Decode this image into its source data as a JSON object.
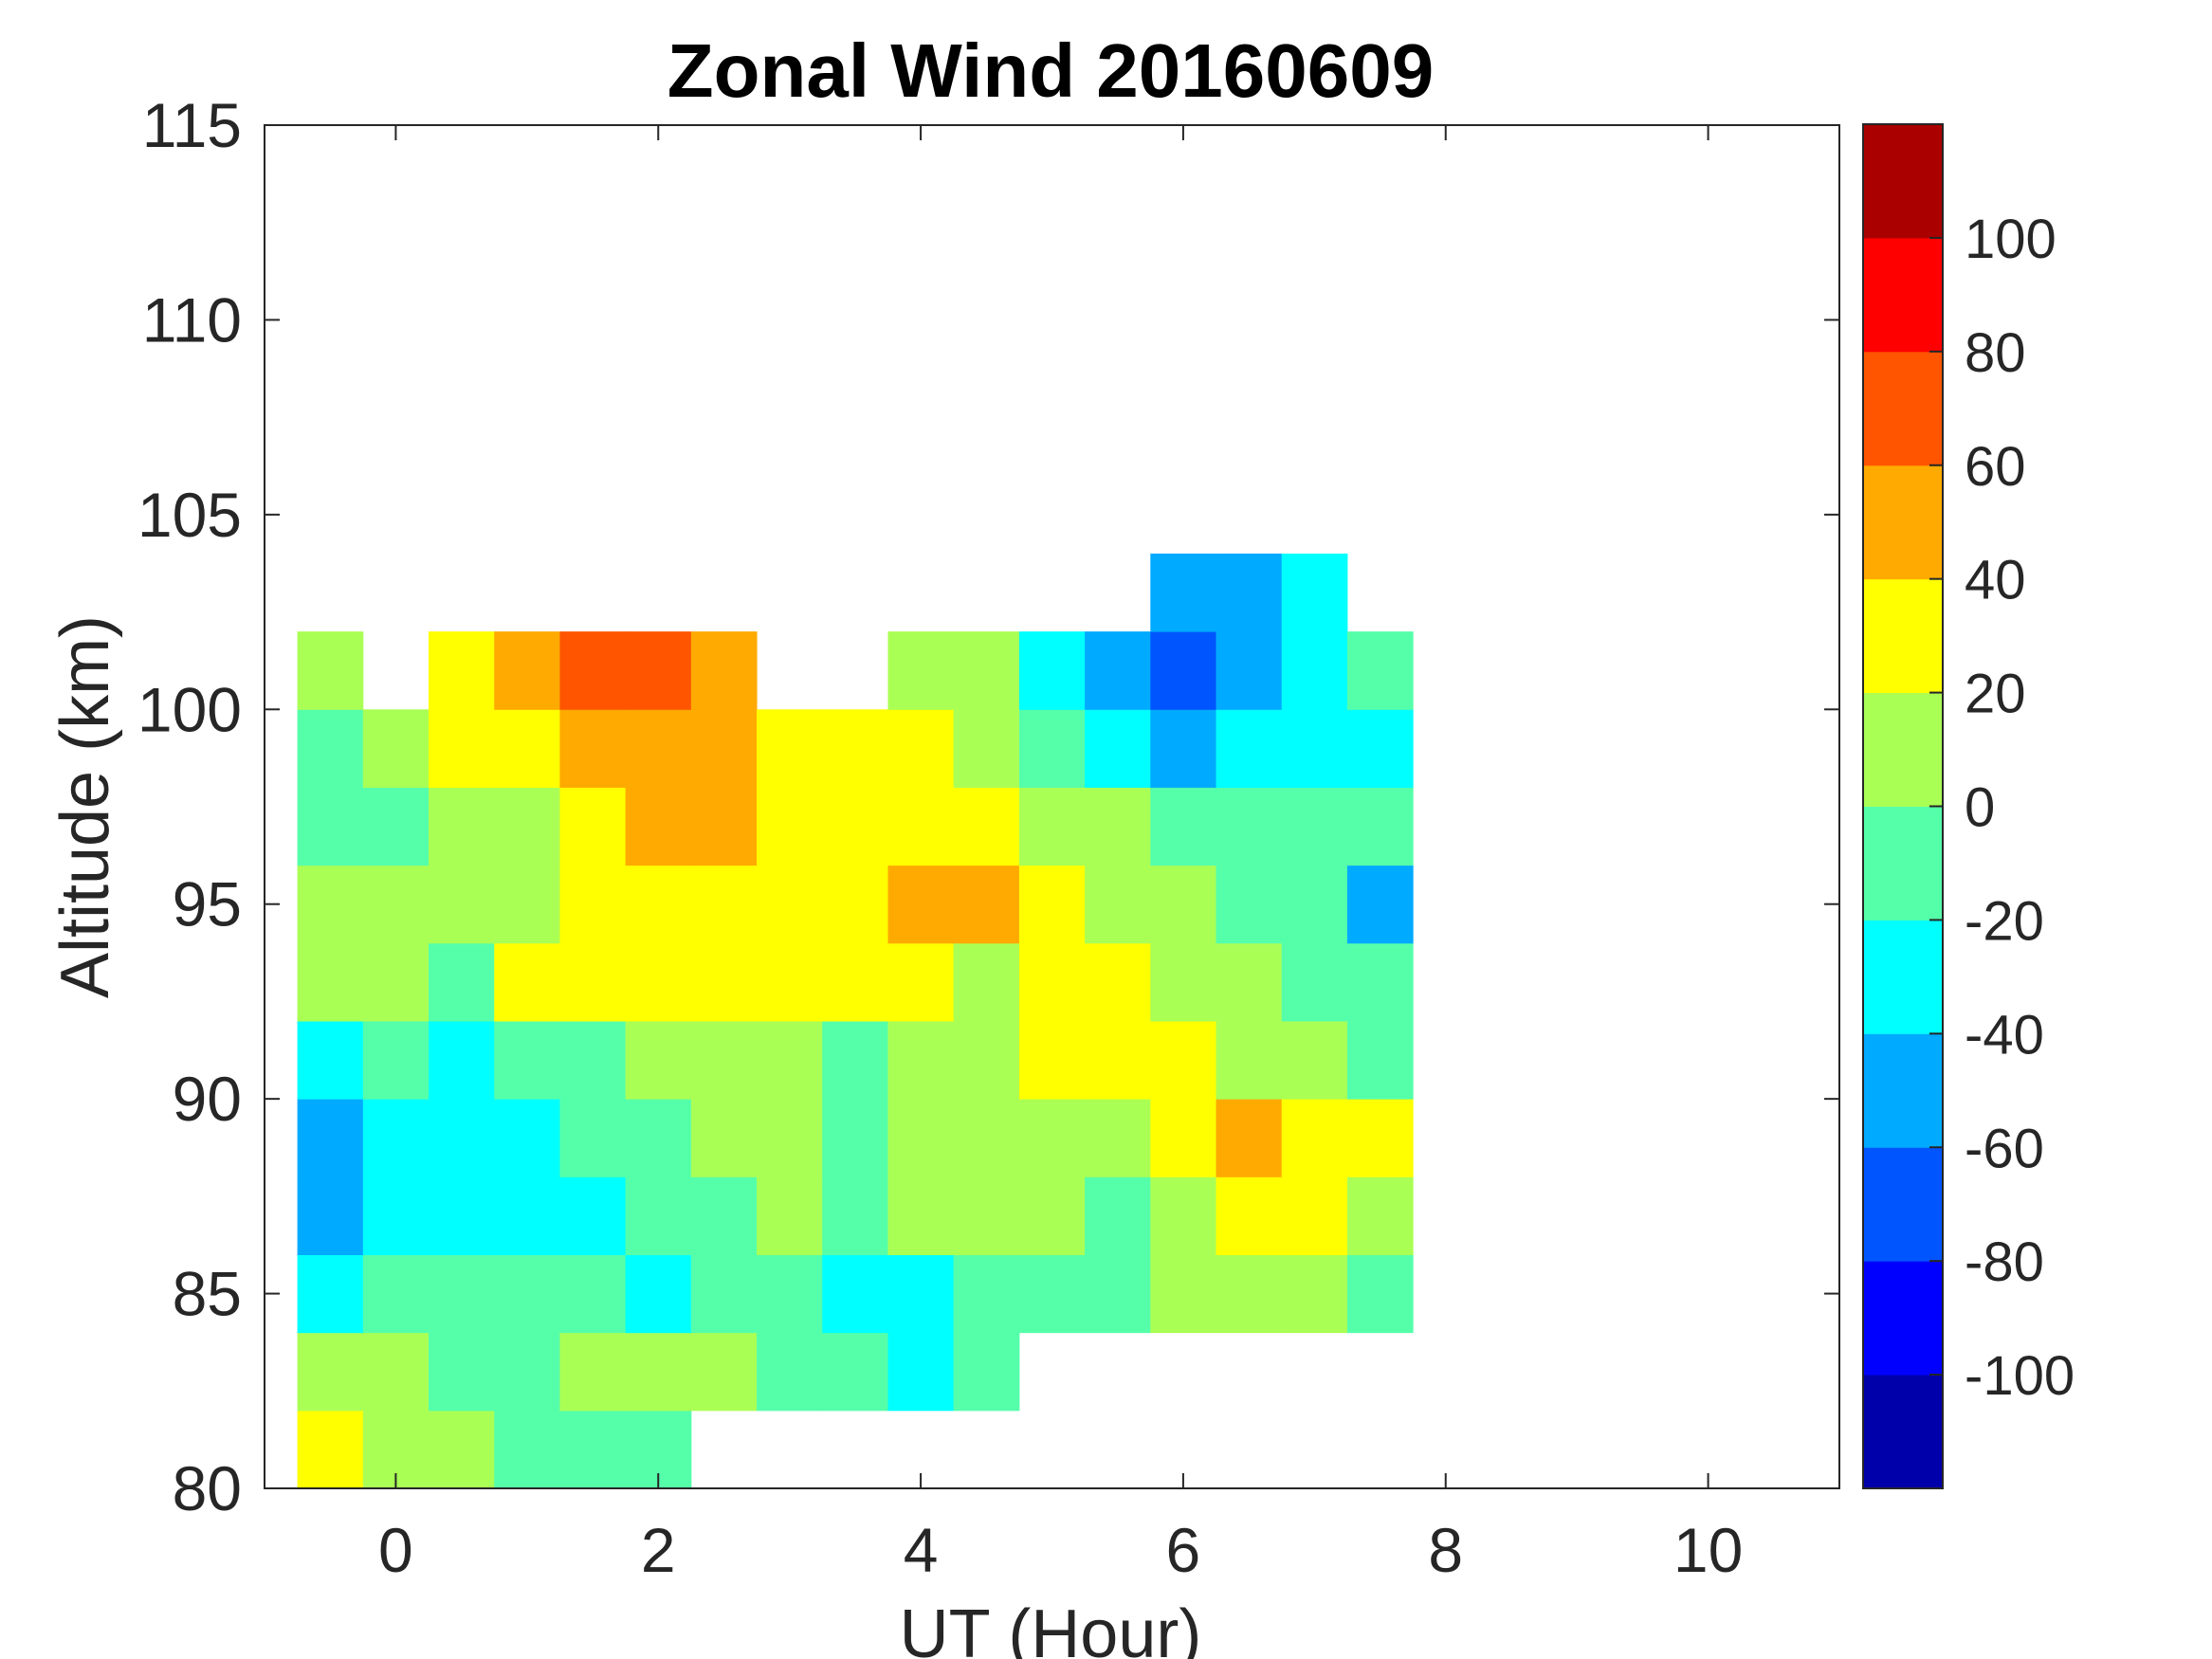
{
  "chart_data": {
    "type": "heatmap",
    "title": "Zonal Wind 20160609",
    "xlabel": "UT (Hour)",
    "ylabel": "Altitude (km)",
    "xlim": [
      -1,
      11
    ],
    "ylim": [
      80,
      115
    ],
    "xticks": [
      "0",
      "2",
      "4",
      "6",
      "8",
      "10"
    ],
    "xtick_values": [
      0,
      2,
      4,
      6,
      8,
      10
    ],
    "yticks": [
      "80",
      "85",
      "90",
      "95",
      "100",
      "105",
      "110",
      "115"
    ],
    "ytick_values": [
      80,
      85,
      90,
      95,
      100,
      105,
      110,
      115
    ],
    "x_centers": [
      -0.5,
      0,
      0.5,
      1,
      1.5,
      2,
      2.5,
      3,
      3.5,
      4,
      4.5,
      5,
      5.5,
      6,
      6.5,
      7,
      7.5
    ],
    "x_step": 0.5,
    "y_centers": [
      81,
      83,
      85,
      87,
      89,
      91,
      93,
      95,
      97,
      99,
      101,
      103
    ],
    "y_step": 2,
    "values": [
      [
        25,
        10,
        5,
        -10,
        -5,
        -10,
        null,
        null,
        null,
        null,
        null,
        null,
        null,
        null,
        null,
        null,
        null
      ],
      [
        5,
        0,
        -5,
        -10,
        5,
        5,
        5,
        -10,
        -10,
        -30,
        -20,
        null,
        null,
        null,
        null,
        null,
        null
      ],
      [
        -30,
        -10,
        -10,
        -15,
        -20,
        -30,
        -10,
        -10,
        -30,
        -30,
        -20,
        -10,
        -10,
        5,
        10,
        5,
        -10
      ],
      [
        -50,
        -30,
        -30,
        -30,
        -30,
        -15,
        -10,
        5,
        -10,
        5,
        5,
        5,
        -10,
        10,
        25,
        25,
        15
      ],
      [
        -50,
        -30,
        -30,
        -30,
        -15,
        -10,
        5,
        5,
        -10,
        5,
        10,
        10,
        15,
        30,
        45,
        30,
        30
      ],
      [
        -30,
        -10,
        -30,
        -10,
        -10,
        5,
        10,
        10,
        -10,
        5,
        10,
        25,
        25,
        25,
        10,
        5,
        -10
      ],
      [
        5,
        0,
        -10,
        25,
        25,
        25,
        30,
        25,
        25,
        25,
        10,
        25,
        25,
        10,
        5,
        -10,
        -10
      ],
      [
        5,
        0,
        5,
        10,
        25,
        25,
        30,
        30,
        30,
        45,
        45,
        30,
        10,
        5,
        -10,
        -10,
        -45
      ],
      [
        -10,
        -10,
        5,
        5,
        25,
        45,
        45,
        30,
        25,
        30,
        25,
        10,
        5,
        -10,
        -10,
        -10,
        -10
      ],
      [
        -10,
        0,
        25,
        30,
        45,
        50,
        45,
        30,
        25,
        25,
        10,
        -10,
        -30,
        -50,
        -30,
        -30,
        -30
      ],
      [
        5,
        null,
        25,
        45,
        65,
        65,
        45,
        null,
        null,
        10,
        5,
        -30,
        -50,
        -70,
        -50,
        -30,
        -20
      ],
      [
        null,
        null,
        null,
        null,
        null,
        null,
        null,
        null,
        null,
        null,
        null,
        null,
        null,
        -60,
        -50,
        -30,
        null
      ]
    ],
    "colorbar": {
      "levels": [
        -120,
        -100,
        -80,
        -60,
        -40,
        -20,
        0,
        20,
        40,
        60,
        80,
        100,
        120
      ],
      "colors": [
        "#0000AA",
        "#0000FF",
        "#0055FF",
        "#00AAFF",
        "#00FFFF",
        "#55FFAA",
        "#AAFF55",
        "#FFFF00",
        "#FFAA00",
        "#FF5500",
        "#FF0000",
        "#AA0000"
      ],
      "ticks": [
        "-100",
        "-80",
        "-60",
        "-40",
        "-20",
        "0",
        "20",
        "40",
        "60",
        "80",
        "100"
      ],
      "tick_values": [
        -100,
        -80,
        -60,
        -40,
        -20,
        0,
        20,
        40,
        60,
        80,
        100
      ]
    },
    "grid": false,
    "legend": "colorbar-right"
  }
}
